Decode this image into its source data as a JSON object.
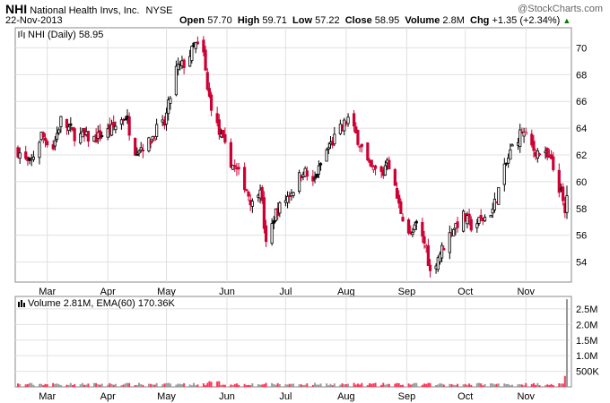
{
  "header": {
    "symbol": "NHI",
    "company": "National Health Invs, Inc.",
    "exchange": "NYSE",
    "date": "22-Nov-2013",
    "watermark": "@StockCharts.com",
    "open_label": "Open",
    "open_value": "57.70",
    "high_label": "High",
    "high_value": "59.71",
    "low_label": "Low",
    "low_value": "57.22",
    "close_label": "Close",
    "close_value": "58.95",
    "volume_label": "Volume",
    "volume_value": "2.8M",
    "chg_label": "Chg",
    "chg_value": "+1.35 (+2.34%)"
  },
  "colors": {
    "up": "#000000",
    "down": "#cc0033",
    "volume_up": "#999999",
    "volume_down": "#ff3355",
    "grid": "#e0e0e0",
    "chg": "#007a00"
  },
  "price_panel": {
    "legend": "NHI (Daily) 58.95",
    "y_ticks": [
      "54",
      "56",
      "58",
      "60",
      "62",
      "64",
      "66",
      "68",
      "70"
    ]
  },
  "volume_panel": {
    "legend": "Volume 2.81M, EMA(60) 170.36K",
    "y_ticks": [
      "500K",
      "1.0M",
      "1.5M",
      "2.0M",
      "2.5M"
    ]
  },
  "x_ticks": [
    "Mar",
    "Apr",
    "May",
    "Jun",
    "Jul",
    "Aug",
    "Sep",
    "Oct",
    "Nov"
  ],
  "chart_data": {
    "type": "candlestick",
    "title": "NHI National Health Invs, Inc. NYSE",
    "ylim": [
      52.5,
      71.5
    ],
    "volume_ylim": [
      0,
      2.9
    ],
    "volume_unit": "M",
    "anchors": [
      [
        "2013-02-14",
        62.3
      ],
      [
        "2013-02-20",
        61.2
      ],
      [
        "2013-02-26",
        63.5
      ],
      [
        "2013-03-04",
        62.6
      ],
      [
        "2013-03-08",
        64.6
      ],
      [
        "2013-03-15",
        63.5
      ],
      [
        "2013-03-25",
        63.2
      ],
      [
        "2013-04-03",
        63.9
      ],
      [
        "2013-04-10",
        64.9
      ],
      [
        "2013-04-15",
        62.4
      ],
      [
        "2013-04-22",
        62.9
      ],
      [
        "2013-04-26",
        63.9
      ],
      [
        "2013-04-30",
        64.3
      ],
      [
        "2013-05-06",
        68.4
      ],
      [
        "2013-05-10",
        68.8
      ],
      [
        "2013-05-16",
        70.2
      ],
      [
        "2013-05-20",
        69.5
      ],
      [
        "2013-05-22",
        66.8
      ],
      [
        "2013-05-28",
        63.6
      ],
      [
        "2013-06-03",
        61.5
      ],
      [
        "2013-06-10",
        59.8
      ],
      [
        "2013-06-14",
        58.3
      ],
      [
        "2013-06-18",
        59.8
      ],
      [
        "2013-06-21",
        55.2
      ],
      [
        "2013-06-26",
        57.7
      ],
      [
        "2013-07-05",
        59.5
      ],
      [
        "2013-07-10",
        60.9
      ],
      [
        "2013-07-15",
        59.8
      ],
      [
        "2013-07-22",
        62.3
      ],
      [
        "2013-07-29",
        63.9
      ],
      [
        "2013-08-02",
        64.7
      ],
      [
        "2013-08-08",
        62.9
      ],
      [
        "2013-08-13",
        61.0
      ],
      [
        "2013-08-20",
        60.6
      ],
      [
        "2013-08-22",
        61.9
      ],
      [
        "2013-08-28",
        58.2
      ],
      [
        "2013-09-03",
        55.9
      ],
      [
        "2013-09-06",
        56.7
      ],
      [
        "2013-09-11",
        55.1
      ],
      [
        "2013-09-13",
        53.2
      ],
      [
        "2013-09-17",
        54.4
      ],
      [
        "2013-09-25",
        56.6
      ],
      [
        "2013-09-30",
        57.4
      ],
      [
        "2013-10-04",
        56.7
      ],
      [
        "2013-10-10",
        57.2
      ],
      [
        "2013-10-15",
        57.9
      ],
      [
        "2013-10-21",
        60.9
      ],
      [
        "2013-10-25",
        62.6
      ],
      [
        "2013-10-30",
        63.8
      ],
      [
        "2013-11-05",
        62.4
      ],
      [
        "2013-11-11",
        61.9
      ],
      [
        "2013-11-14",
        61.4
      ],
      [
        "2013-11-19",
        59.1
      ],
      [
        "2013-11-21",
        57.6
      ],
      [
        "2013-11-22",
        58.95
      ]
    ]
  }
}
